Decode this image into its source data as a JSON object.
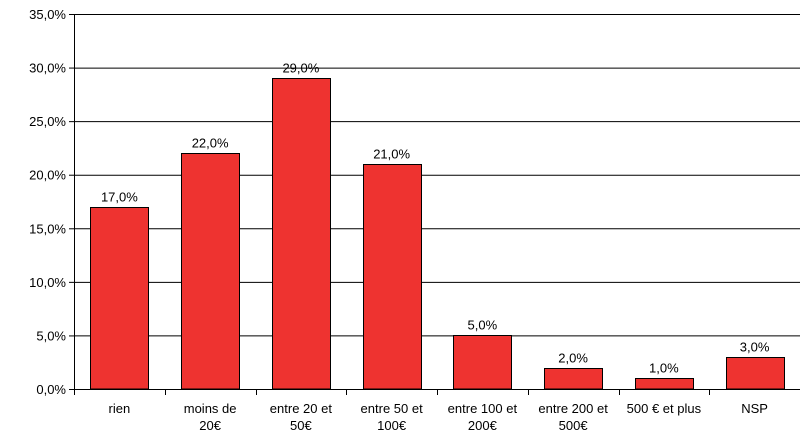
{
  "chart_data": {
    "type": "bar",
    "title": "",
    "xlabel": "",
    "ylabel": "",
    "categories": [
      [
        "rien"
      ],
      [
        "moins de",
        "20€"
      ],
      [
        "entre 20 et",
        "50€"
      ],
      [
        "entre 50 et",
        "100€"
      ],
      [
        "entre 100 et",
        "200€"
      ],
      [
        "entre 200 et",
        "500€"
      ],
      [
        "500 € et plus"
      ],
      [
        "NSP"
      ]
    ],
    "values": [
      17.0,
      22.0,
      29.0,
      21.0,
      5.0,
      2.0,
      1.0,
      3.0
    ],
    "value_labels": [
      "17,0%",
      "22,0%",
      "29,0%",
      "21,0%",
      "5,0%",
      "2,0%",
      "1,0%",
      "3,0%"
    ],
    "ylim": [
      0,
      35
    ],
    "yticks": [
      0,
      5,
      10,
      15,
      20,
      25,
      30,
      35
    ],
    "ytick_labels": [
      "0,0%",
      "5,0%",
      "10,0%",
      "15,0%",
      "20,0%",
      "25,0%",
      "30,0%",
      "35,0%"
    ],
    "grid": "horizontal",
    "legend": "none",
    "colors": {
      "bar": "#EE3330",
      "bar_stroke": "#000000",
      "grid": "#000000",
      "axis": "#000000"
    }
  }
}
